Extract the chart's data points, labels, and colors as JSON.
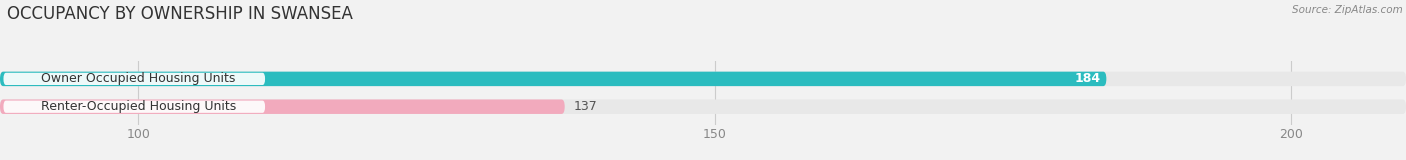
{
  "title": "OCCUPANCY BY OWNERSHIP IN SWANSEA",
  "source": "Source: ZipAtlas.com",
  "categories": [
    "Owner Occupied Housing Units",
    "Renter-Occupied Housing Units"
  ],
  "values": [
    184,
    137
  ],
  "bar_colors": [
    "#2BBCBF",
    "#F2AABD"
  ],
  "bar_bg_color": "#e8e8e8",
  "xlim": [
    88,
    210
  ],
  "xstart": 88,
  "xticks": [
    100,
    150,
    200
  ],
  "bar_height": 0.52,
  "background_color": "#f2f2f2",
  "title_fontsize": 12,
  "tick_fontsize": 9,
  "label_fontsize": 9,
  "value_fontsize": 9
}
